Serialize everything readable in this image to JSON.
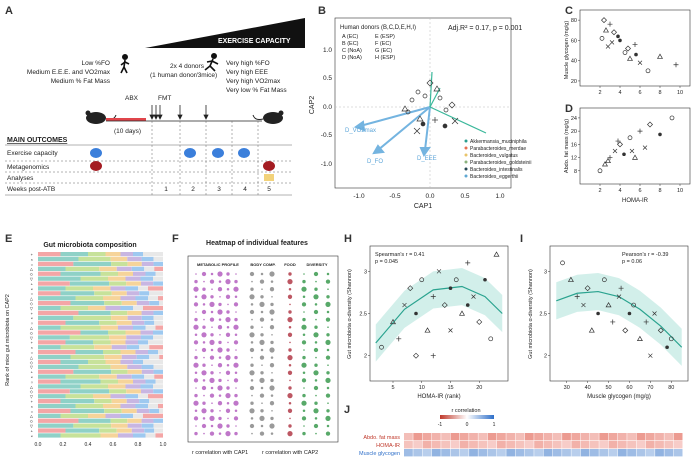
{
  "panels": {
    "A": {
      "label": "A",
      "capacity_title": "EXERCISE CAPACITY",
      "low_lines": [
        "Low %FO",
        "Medium E.E.E. and VO2max",
        "Medium % Fat Mass"
      ],
      "high1_lines": [
        "Very high %FO",
        "Very high EEE",
        "Very high VO2max",
        "Very low % Fat Mass"
      ],
      "donors_lines": [
        "2x 4 donors",
        "(1 human donor/3mice)"
      ],
      "abx_label": "ABX",
      "abx_days": "(10 days)",
      "fmt_label": "FMT",
      "outcomes_title": "MAIN OUTCOMES",
      "outcomes": [
        "Exercise capacity",
        "Metagenomics",
        "Analyses",
        "Weeks post-ATB"
      ],
      "weeks": [
        "1",
        "2",
        "3",
        "4",
        "5"
      ]
    },
    "B": {
      "label": "B",
      "legend_title": "Human donors (B,C,D,E,H,I)",
      "donors": [
        "A (EC)",
        "B (EC)",
        "C (NoA)",
        "D (NoA)",
        "E (ESP)",
        "F (EC)",
        "G (EC)",
        "H (ESP)"
      ],
      "stat": "Adj.R² = 0.17, p = 0.001",
      "xlabel": "CAP1",
      "ylabel": "CAP2",
      "vector_labels": [
        "D_VO2max",
        "D_FO",
        "D_EEE"
      ],
      "taxa": [
        "Akkermansia_muciniphila",
        "Parabacteroides_merdae",
        "Bacteroides_vulgatus",
        "Parabacteroides_goldsteinii",
        "Bacteroides_intestinalis",
        "Bacteroides_eggerthii"
      ],
      "taxa_colors": [
        "#2a9d8f",
        "#e76f51",
        "#e9c46a",
        "#8ab17d",
        "#264653",
        "#5fa8d3"
      ]
    },
    "C": {
      "label": "C",
      "ylabel": "Muscle glycogen (mg/g)"
    },
    "D": {
      "label": "D",
      "ylabel": "Abdo. fat mass (mg/g)",
      "xlabel": "HOMA-IR"
    },
    "E": {
      "label": "E",
      "title": "Gut microbiota composition",
      "ylabel": "Rank of mice gut microbiota on CAP2"
    },
    "F": {
      "label": "F",
      "title": "Heatmap of individual features",
      "groups": [
        "METABOLIC PROFILE",
        "BODY COMP.",
        "FOOD",
        "DIVERSITY"
      ],
      "foot1": "r correlation with CAP1",
      "foot2": "r correlation with CAP2"
    },
    "H": {
      "label": "H",
      "stat1": "Spearman's r = 0.41",
      "stat2": "p = 0.045",
      "ylabel": "Gut microbiota α-diversity (Shannon)",
      "xlabel": "HOMA-IR (rank)"
    },
    "I": {
      "label": "I",
      "stat1": "Pearson's r = -0.39",
      "stat2": "p = 0.06",
      "ylabel": "Gut microbiota α-diversity (Shannon)",
      "xlabel": "Muscle glycogen (mg/g)"
    },
    "J": {
      "label": "J",
      "legend_title": "r correlation",
      "legend_min": "-1",
      "legend_mid": "0",
      "legend_max": "1",
      "rows": [
        "Abdo. fat mass",
        "HOMA-IR",
        "Muscle glycogen"
      ]
    }
  },
  "chart_data": [
    {
      "panel": "C",
      "type": "scatter",
      "x": [
        2.2,
        2.6,
        3.0,
        2.8,
        3.4,
        4.0,
        4.5,
        5.0,
        5.5,
        6.0,
        2.4,
        3.8,
        6.8,
        8.0,
        9.6,
        3.2,
        4.8,
        5.6
      ],
      "y": [
        62,
        70,
        76,
        54,
        68,
        60,
        48,
        42,
        56,
        38,
        80,
        64,
        30,
        44,
        36,
        58,
        52,
        46
      ],
      "xlim": [
        0,
        11
      ],
      "ylim": [
        15,
        90
      ],
      "xticks": [
        2,
        4,
        6,
        8,
        10
      ],
      "yticks": [
        20,
        40,
        60,
        80
      ],
      "ylabel": "Muscle glycogen (mg/g)"
    },
    {
      "panel": "D",
      "type": "scatter",
      "x": [
        2.0,
        2.5,
        3.0,
        3.5,
        4.0,
        4.4,
        5.0,
        5.5,
        6.0,
        6.5,
        7.0,
        8.0,
        9.2,
        2.8,
        3.8,
        5.2
      ],
      "y": [
        8,
        10,
        12,
        14,
        16,
        13,
        18,
        12,
        20,
        15,
        22,
        19,
        24,
        11,
        17,
        14
      ],
      "xlim": [
        0,
        11
      ],
      "ylim": [
        4,
        27
      ],
      "xticks": [
        2,
        4,
        6,
        8,
        10
      ],
      "yticks": [
        8,
        12,
        16,
        20,
        24
      ],
      "xlabel": "HOMA-IR",
      "ylabel": "Abdo. fat mass (mg/g)"
    },
    {
      "panel": "H",
      "type": "scatter",
      "x": [
        3,
        5,
        6,
        7,
        8,
        9,
        10,
        11,
        12,
        13,
        14,
        15,
        16,
        17,
        18,
        19,
        20,
        21,
        22,
        23,
        12,
        15,
        9,
        18
      ],
      "y": [
        2.1,
        2.4,
        2.2,
        2.6,
        2.8,
        2.5,
        2.9,
        2.3,
        2.7,
        3.0,
        2.6,
        2.8,
        2.9,
        2.5,
        3.1,
        2.7,
        2.4,
        2.9,
        2.2,
        3.2,
        2.0,
        2.3,
        2.0,
        2.6
      ],
      "fit": [
        [
          2,
          2.15
        ],
        [
          7,
          2.55
        ],
        [
          12,
          2.78
        ],
        [
          17,
          2.82
        ],
        [
          21,
          2.7
        ],
        [
          24,
          2.5
        ]
      ],
      "xlim": [
        1,
        25
      ],
      "ylim": [
        1.7,
        3.3
      ],
      "xticks": [
        5,
        10,
        15,
        20
      ],
      "yticks": [
        2.0,
        2.5,
        3.0
      ],
      "xlabel": "HOMA-IR (rank)",
      "ylabel": "Gut microbiota α-diversity (Shannon)"
    },
    {
      "panel": "I",
      "type": "scatter",
      "x": [
        28,
        32,
        35,
        38,
        40,
        45,
        48,
        50,
        52,
        55,
        58,
        60,
        62,
        65,
        68,
        70,
        75,
        78,
        80,
        42,
        56,
        72
      ],
      "y": [
        3.1,
        2.9,
        2.7,
        2.6,
        2.8,
        2.5,
        2.9,
        2.6,
        2.4,
        2.7,
        2.3,
        2.5,
        2.6,
        2.2,
        2.4,
        2.0,
        2.3,
        2.1,
        2.2,
        2.3,
        2.8,
        2.5
      ],
      "fit": [
        [
          25,
          2.65
        ],
        [
          35,
          2.74
        ],
        [
          45,
          2.76
        ],
        [
          55,
          2.7
        ],
        [
          65,
          2.55
        ],
        [
          75,
          2.35
        ],
        [
          85,
          2.1
        ]
      ],
      "xlim": [
        22,
        88
      ],
      "ylim": [
        1.7,
        3.3
      ],
      "xticks": [
        30,
        40,
        50,
        60,
        70,
        80
      ],
      "yticks": [
        2.0,
        2.5,
        3.0
      ],
      "xlabel": "Muscle glycogen (mg/g)",
      "ylabel": "Gut microbiota α-diversity (Shannon)"
    },
    {
      "panel": "E",
      "type": "bar",
      "xticks": [
        "0.0",
        "0.2",
        "0.4",
        "0.6",
        "0.8",
        "1.0"
      ],
      "ylabel": "Rank of mice gut microbiota on CAP2"
    }
  ]
}
